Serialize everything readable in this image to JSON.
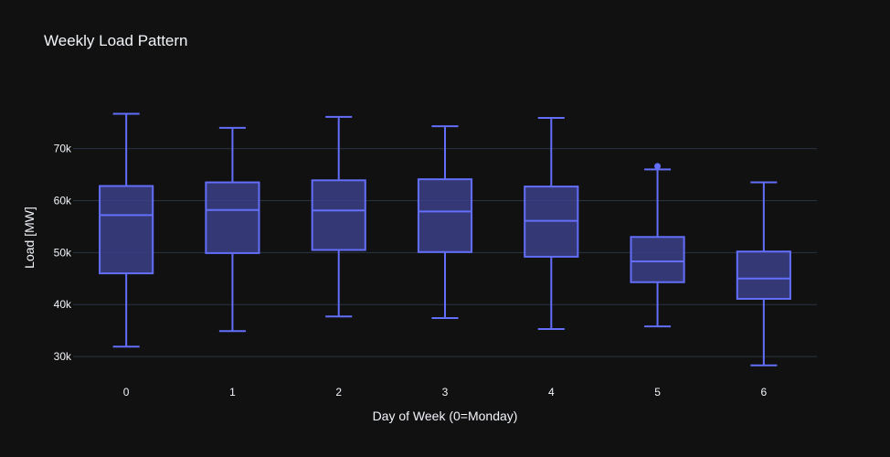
{
  "chart_data": {
    "type": "box",
    "title": "Weekly Load Pattern",
    "xlabel": "Day of Week (0=Monday)",
    "ylabel": "Load [MW]",
    "categories": [
      "0",
      "1",
      "2",
      "3",
      "4",
      "5",
      "6"
    ],
    "yticks": [
      {
        "value": 30000,
        "label": "30k"
      },
      {
        "value": 40000,
        "label": "40k"
      },
      {
        "value": 50000,
        "label": "50k"
      },
      {
        "value": 60000,
        "label": "60k"
      },
      {
        "value": 70000,
        "label": "70k"
      }
    ],
    "ylim": [
      26500,
      81000
    ],
    "grid": true,
    "boxes": [
      {
        "category": "0",
        "min": 31900,
        "q1": 46000,
        "median": 57200,
        "q3": 62800,
        "max": 76700,
        "outliers": []
      },
      {
        "category": "1",
        "min": 34900,
        "q1": 49900,
        "median": 58200,
        "q3": 63500,
        "max": 74000,
        "outliers": []
      },
      {
        "category": "2",
        "min": 37700,
        "q1": 50500,
        "median": 58100,
        "q3": 63900,
        "max": 76100,
        "outliers": []
      },
      {
        "category": "3",
        "min": 37400,
        "q1": 50100,
        "median": 57900,
        "q3": 64100,
        "max": 74300,
        "outliers": []
      },
      {
        "category": "4",
        "min": 35300,
        "q1": 49200,
        "median": 56100,
        "q3": 62700,
        "max": 75900,
        "outliers": []
      },
      {
        "category": "5",
        "min": 35800,
        "q1": 44300,
        "median": 48300,
        "q3": 53000,
        "max": 66000,
        "outliers": [
          66600
        ]
      },
      {
        "category": "6",
        "min": 28300,
        "q1": 41100,
        "median": 45000,
        "q3": 50200,
        "max": 63500,
        "outliers": []
      }
    ],
    "colors": {
      "box_line": "#636efa",
      "box_fill": "#3b3f86",
      "grid": "#283442",
      "background": "#111111",
      "text": "#f2f5fa"
    }
  }
}
